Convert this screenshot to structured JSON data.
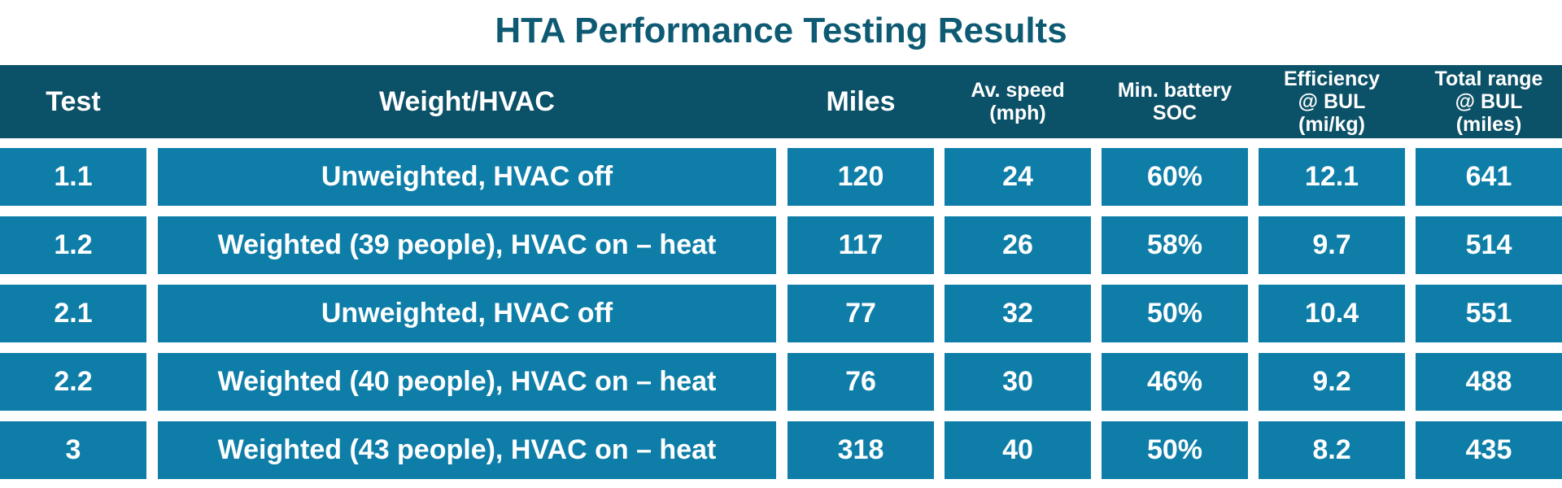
{
  "title": "HTA Performance Testing Results",
  "colors": {
    "title": "#0e5a73",
    "header_bg": "#0b5168",
    "cell_bg": "#0e7ea8",
    "text": "#ffffff"
  },
  "table": {
    "headers": [
      "Test",
      "Weight/HVAC",
      "Miles",
      "Av. speed\n(mph)",
      "Min. battery\nSOC",
      "Efficiency\n@ BUL\n(mi/kg)",
      "Total range\n@ BUL\n(miles)"
    ],
    "rows": [
      [
        "1.1",
        "Unweighted, HVAC off",
        "120",
        "24",
        "60%",
        "12.1",
        "641"
      ],
      [
        "1.2",
        "Weighted (39 people), HVAC on – heat",
        "117",
        "26",
        "58%",
        "9.7",
        "514"
      ],
      [
        "2.1",
        "Unweighted, HVAC off",
        "77",
        "32",
        "50%",
        "10.4",
        "551"
      ],
      [
        "2.2",
        "Weighted (40 people), HVAC on – heat",
        "76",
        "30",
        "46%",
        "9.2",
        "488"
      ],
      [
        "3",
        "Weighted (43 people), HVAC on – heat",
        "318",
        "40",
        "50%",
        "8.2",
        "435"
      ]
    ]
  }
}
